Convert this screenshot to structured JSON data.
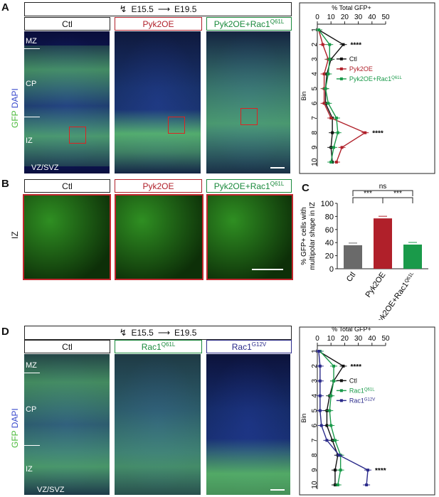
{
  "panels": {
    "A": {
      "label": "A",
      "timeline": {
        "start": "E15.5",
        "end": "E19.5"
      },
      "conditions": [
        "Ctl",
        "Pyk2OE",
        "Pyk2OE+Rac1Q61L"
      ],
      "layers": [
        "MZ",
        "CP",
        "IZ",
        "VZ/SVZ"
      ],
      "stain_label_gfp": "GFP",
      "stain_label_dapi": "DAPI"
    },
    "B": {
      "label": "B",
      "conditions": [
        "Ctl",
        "Pyk2OE",
        "Pyk2OE+Rac1Q61L"
      ],
      "region": "IZ"
    },
    "C": {
      "label": "C"
    },
    "D": {
      "label": "D",
      "timeline": {
        "start": "E15.5",
        "end": "E19.5"
      },
      "conditions": [
        "Ctl",
        "Rac1Q61L",
        "Rac1G12V"
      ],
      "layers": [
        "MZ",
        "CP",
        "IZ",
        "VZ/SVZ"
      ],
      "stain_label_gfp": "GFP",
      "stain_label_dapi": "DAPI"
    }
  },
  "colors": {
    "ctl": "#111111",
    "red": "#b0202a",
    "green": "#1a9a4a",
    "blue": "#2a2a8a",
    "gray": "#6a6a6a"
  },
  "chart_data": [
    {
      "type": "line",
      "panel": "A",
      "xlabel": "% Total GFP+",
      "ylabel": "Bin",
      "xlim": [
        0,
        50
      ],
      "xticks": [
        0,
        10,
        20,
        30,
        40,
        50
      ],
      "bins": [
        1,
        2,
        3,
        4,
        5,
        6,
        7,
        8,
        9,
        10
      ],
      "series": [
        {
          "name": "Ctl",
          "color": "#111111",
          "values": [
            1,
            19,
            10,
            7,
            6,
            6,
            11,
            11,
            10,
            11
          ]
        },
        {
          "name": "Pyk2OE",
          "color": "#b0202a",
          "values": [
            1,
            4,
            8,
            5,
            5,
            5,
            10,
            35,
            18,
            14
          ]
        },
        {
          "name": "Pyk2OE+Rac1Q61L",
          "color": "#1a9a4a",
          "values": [
            1,
            9,
            9,
            8,
            6,
            8,
            14,
            15,
            12,
            10
          ]
        }
      ],
      "annotations": [
        {
          "bin": 2,
          "text": "****"
        },
        {
          "bin": 8,
          "text": "****"
        }
      ]
    },
    {
      "type": "bar",
      "panel": "C",
      "ylabel": "% GFP+ cells with multipolar shape in IZ",
      "ylim": [
        0,
        100
      ],
      "yticks": [
        0,
        20,
        40,
        60,
        80,
        100
      ],
      "categories": [
        "Ctl",
        "Pyk2OE",
        "Pyk2OE+Rac1Q61L"
      ],
      "values": [
        36,
        77,
        37
      ],
      "colors": [
        "#6a6a6a",
        "#b0202a",
        "#1a9a4a"
      ],
      "significance": [
        {
          "from": 0,
          "to": 1,
          "text": "***"
        },
        {
          "from": 1,
          "to": 2,
          "text": "***"
        },
        {
          "from": 0,
          "to": 2,
          "text": "ns"
        }
      ]
    },
    {
      "type": "line",
      "panel": "D",
      "xlabel": "% Total GFP+",
      "ylabel": "Bin",
      "xlim": [
        0,
        50
      ],
      "xticks": [
        0,
        10,
        20,
        30,
        40,
        50
      ],
      "bins": [
        1,
        2,
        3,
        4,
        5,
        6,
        7,
        8,
        9,
        10
      ],
      "series": [
        {
          "name": "Ctl",
          "color": "#111111",
          "values": [
            1,
            19,
            12,
            9,
            7,
            7,
            11,
            15,
            13,
            13
          ]
        },
        {
          "name": "Rac1Q61L",
          "color": "#1a9a4a",
          "values": [
            2,
            12,
            12,
            10,
            9,
            10,
            13,
            17,
            17,
            15
          ]
        },
        {
          "name": "Rac1G12V",
          "color": "#2a2a8a",
          "values": [
            1,
            2,
            2,
            2,
            2,
            3,
            7,
            16,
            37,
            36
          ]
        }
      ],
      "annotations": [
        {
          "bin": 2,
          "text": "****"
        },
        {
          "bin": 9,
          "text": "****"
        }
      ]
    }
  ]
}
